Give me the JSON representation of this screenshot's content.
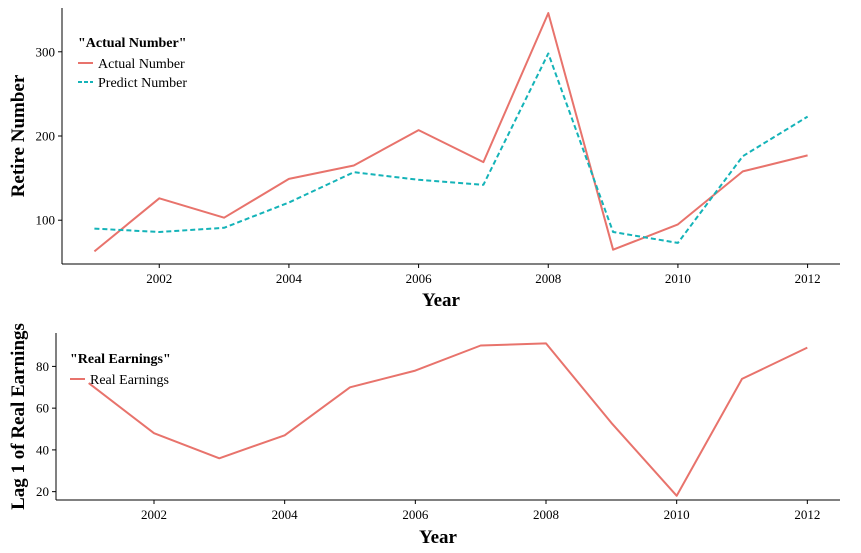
{
  "colors": {
    "actual": "#e8736c",
    "predict": "#14b3b8",
    "earnings": "#e8736c",
    "axis": "#000000"
  },
  "chart_data": [
    {
      "type": "line",
      "title": "",
      "xlabel": "Year",
      "ylabel": "Retire Number",
      "xlim": [
        2000.5,
        2012.5
      ],
      "ylim": [
        48,
        352
      ],
      "x_ticks": [
        2002,
        2004,
        2006,
        2008,
        2010,
        2012
      ],
      "y_ticks": [
        100,
        200,
        300
      ],
      "legend": {
        "title": "\"Actual Number\"",
        "placement": "top-left"
      },
      "x": [
        2001,
        2002,
        2003,
        2004,
        2005,
        2006,
        2007,
        2008,
        2009,
        2010,
        2011,
        2012
      ],
      "series": [
        {
          "name": "Actual Number",
          "style": "solid",
          "values": [
            63,
            126,
            103,
            149,
            165,
            207,
            169,
            346,
            65,
            95,
            158,
            177
          ]
        },
        {
          "name": "Predict Number",
          "style": "dashed",
          "values": [
            90,
            86,
            91,
            121,
            157,
            148,
            142,
            298,
            86,
            73,
            176,
            223
          ]
        }
      ]
    },
    {
      "type": "line",
      "title": "",
      "xlabel": "Year",
      "ylabel": "Lag 1 of Real Earnings",
      "xlim": [
        2000.5,
        2012.5
      ],
      "ylim": [
        16,
        96
      ],
      "x_ticks": [
        2002,
        2004,
        2006,
        2008,
        2010,
        2012
      ],
      "y_ticks": [
        20,
        40,
        60,
        80
      ],
      "legend": {
        "title": "\"Real Earnings\"",
        "placement": "top-left"
      },
      "x": [
        2001,
        2002,
        2003,
        2004,
        2005,
        2006,
        2007,
        2008,
        2009,
        2010,
        2011,
        2012
      ],
      "series": [
        {
          "name": "Real Earnings",
          "style": "solid",
          "values": [
            72,
            48,
            36,
            47,
            70,
            78,
            90,
            91,
            53,
            18,
            74,
            89
          ]
        }
      ]
    }
  ]
}
